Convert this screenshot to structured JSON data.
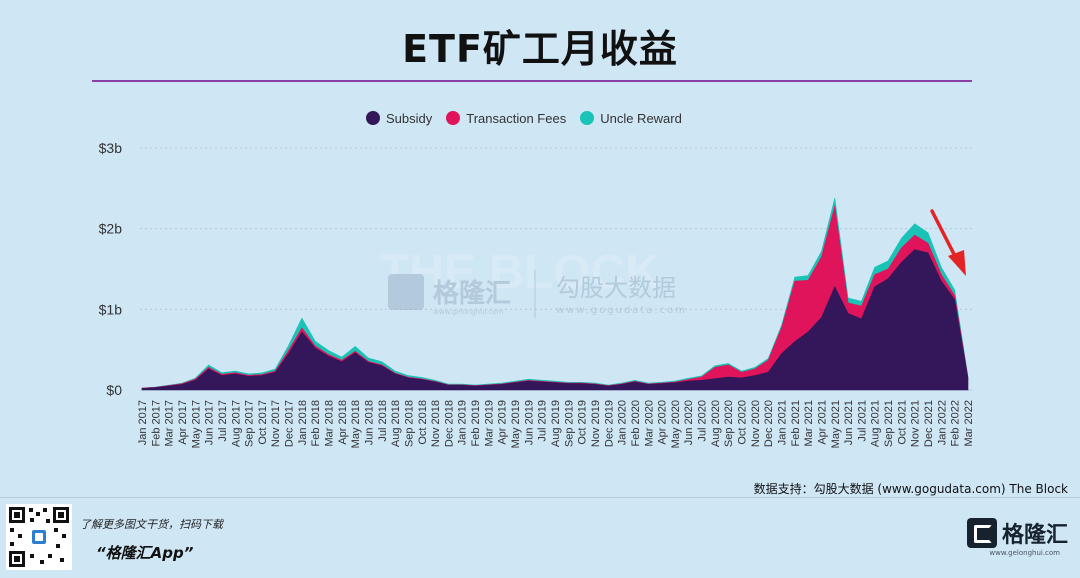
{
  "title": "ETF矿工月收益",
  "legend": [
    {
      "label": "Subsidy",
      "color": "#33175a"
    },
    {
      "label": "Transaction Fees",
      "color": "#e0145a"
    },
    {
      "label": "Uncle Reward",
      "color": "#19c3b6"
    }
  ],
  "watermark": {
    "the_block": "THE BLOCK",
    "gelonghui": "格隆汇",
    "gelonghui_url": "www.gelonghui.com",
    "gogudata": "勾股大数据",
    "gogudata_url": "www.gogudata.com"
  },
  "credit": "数据支持：勾股大数据 (www.gogudata.com) The Block",
  "footer": {
    "line1": "了解更多图文干货，扫码下载",
    "line2": "“格隆汇App”",
    "brand": "格隆汇",
    "brand_url": "www.gelonghui.com",
    "brand_ghost": "格隆汇"
  },
  "chart_data": {
    "type": "area",
    "stacked": true,
    "y_ticks": [
      "$0",
      "$1b",
      "$2b",
      "$3b"
    ],
    "ylim": [
      0,
      3
    ],
    "y_unit": "billion USD",
    "grid": true,
    "x": [
      "Jan 2017",
      "Feb 2017",
      "Mar 2017",
      "Apr 2017",
      "May 2017",
      "Jun 2017",
      "Jul 2017",
      "Aug 2017",
      "Sep 2017",
      "Oct 2017",
      "Nov 2017",
      "Dec 2017",
      "Jan 2018",
      "Feb 2018",
      "Mar 2018",
      "Apr 2018",
      "May 2018",
      "Jun 2018",
      "Jul 2018",
      "Aug 2018",
      "Sep 2018",
      "Oct 2018",
      "Nov 2018",
      "Dec 2018",
      "Jan 2019",
      "Feb 2019",
      "Mar 2019",
      "Apr 2019",
      "May 2019",
      "Jun 2019",
      "Jul 2019",
      "Aug 2019",
      "Sep 2019",
      "Oct 2019",
      "Nov 2019",
      "Dec 2019",
      "Jan 2020",
      "Feb 2020",
      "Mar 2020",
      "Apr 2020",
      "May 2020",
      "Jun 2020",
      "Jul 2020",
      "Aug 2020",
      "Sep 2020",
      "Oct 2020",
      "Nov 2020",
      "Dec 2020",
      "Jan 2021",
      "Feb 2021",
      "Mar 2021",
      "Apr 2021",
      "May 2021",
      "Jun 2021",
      "Jul 2021",
      "Aug 2021",
      "Sep 2021",
      "Oct 2021",
      "Nov 2021",
      "Dec 2021",
      "Jan 2022",
      "Feb 2022",
      "Mar 2022"
    ],
    "series": [
      {
        "name": "Subsidy",
        "color": "#33175a",
        "values": [
          0.02,
          0.03,
          0.05,
          0.07,
          0.12,
          0.26,
          0.18,
          0.2,
          0.17,
          0.18,
          0.22,
          0.45,
          0.72,
          0.52,
          0.42,
          0.35,
          0.46,
          0.34,
          0.3,
          0.2,
          0.15,
          0.13,
          0.1,
          0.06,
          0.06,
          0.05,
          0.06,
          0.07,
          0.09,
          0.11,
          0.1,
          0.09,
          0.08,
          0.08,
          0.07,
          0.05,
          0.07,
          0.1,
          0.07,
          0.08,
          0.09,
          0.11,
          0.12,
          0.14,
          0.16,
          0.15,
          0.18,
          0.22,
          0.45,
          0.6,
          0.72,
          0.9,
          1.28,
          0.95,
          0.88,
          1.28,
          1.38,
          1.58,
          1.74,
          1.7,
          1.35,
          1.12,
          0.14
        ]
      },
      {
        "name": "Transaction Fees",
        "color": "#e0145a",
        "values": [
          0.003,
          0.004,
          0.005,
          0.008,
          0.015,
          0.02,
          0.015,
          0.015,
          0.012,
          0.012,
          0.015,
          0.04,
          0.05,
          0.025,
          0.02,
          0.018,
          0.02,
          0.015,
          0.012,
          0.01,
          0.008,
          0.008,
          0.006,
          0.004,
          0.004,
          0.004,
          0.004,
          0.005,
          0.007,
          0.009,
          0.008,
          0.007,
          0.006,
          0.006,
          0.005,
          0.004,
          0.006,
          0.008,
          0.006,
          0.006,
          0.008,
          0.02,
          0.04,
          0.14,
          0.15,
          0.07,
          0.08,
          0.15,
          0.32,
          0.75,
          0.64,
          0.75,
          1.0,
          0.13,
          0.16,
          0.15,
          0.12,
          0.18,
          0.18,
          0.12,
          0.08,
          0.05,
          0.015
        ]
      },
      {
        "name": "Uncle Reward",
        "color": "#19c3b6",
        "values": [
          0.002,
          0.003,
          0.004,
          0.006,
          0.012,
          0.03,
          0.02,
          0.02,
          0.018,
          0.02,
          0.025,
          0.06,
          0.12,
          0.06,
          0.05,
          0.04,
          0.06,
          0.04,
          0.04,
          0.025,
          0.02,
          0.018,
          0.014,
          0.01,
          0.01,
          0.008,
          0.01,
          0.01,
          0.012,
          0.015,
          0.014,
          0.012,
          0.01,
          0.01,
          0.01,
          0.008,
          0.01,
          0.012,
          0.01,
          0.01,
          0.012,
          0.015,
          0.015,
          0.02,
          0.02,
          0.015,
          0.02,
          0.02,
          0.03,
          0.05,
          0.06,
          0.07,
          0.1,
          0.06,
          0.06,
          0.09,
          0.1,
          0.12,
          0.14,
          0.13,
          0.09,
          0.07,
          0.01
        ]
      }
    ]
  }
}
